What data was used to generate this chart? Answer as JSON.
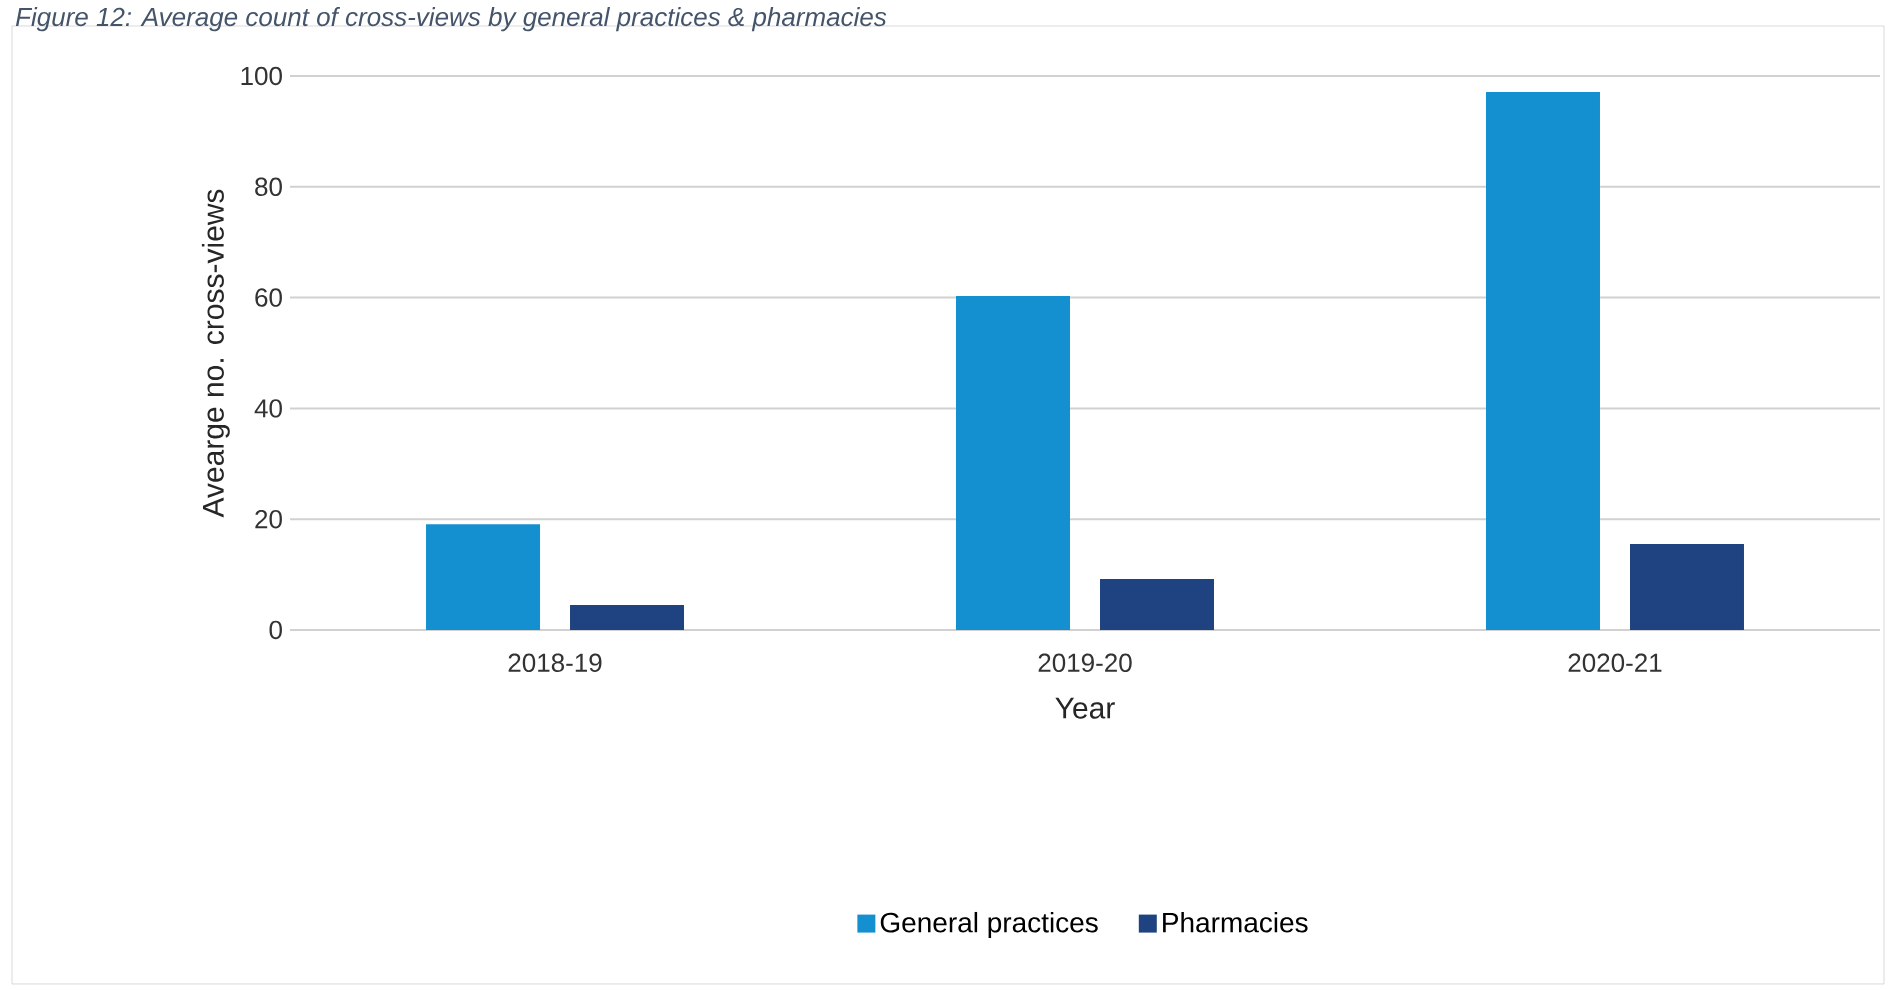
{
  "chart_data": {
    "type": "bar",
    "title": "Figure 12: Average count of cross-views by general practices & pharmacies",
    "categories": [
      "2018-19",
      "2019-20",
      "2020-21"
    ],
    "series": [
      {
        "name": "General practices",
        "color": "#1490d0",
        "values": [
          19.1,
          60.3,
          97.1
        ]
      },
      {
        "name": "Pharmacies",
        "color": "#1f4380",
        "values": [
          4.5,
          9.2,
          15.5
        ]
      }
    ],
    "xlabel": "Year",
    "ylabel": "Avearge no. cross-views",
    "ylim": [
      0,
      100
    ],
    "yticks": [
      0,
      20,
      40,
      60,
      80,
      100
    ],
    "grid": "y",
    "legend": "bottom"
  }
}
